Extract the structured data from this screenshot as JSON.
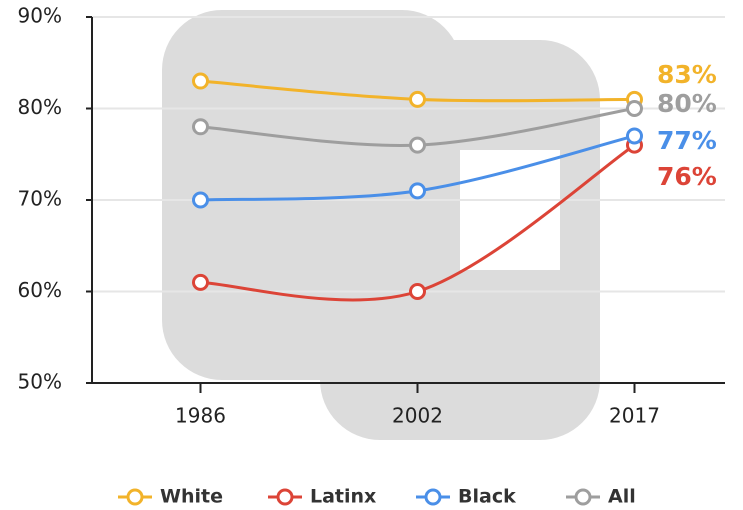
{
  "chart_data": {
    "type": "line",
    "categories": [
      "1986",
      "2002",
      "2017"
    ],
    "series": [
      {
        "name": "White",
        "color": "#f2b32a",
        "values": [
          83,
          81,
          81
        ],
        "label": "83%"
      },
      {
        "name": "Latinx",
        "color": "#dc4437",
        "values": [
          61,
          60,
          76
        ],
        "label": "76%"
      },
      {
        "name": "Black",
        "color": "#4a8fe8",
        "values": [
          70,
          71,
          77
        ],
        "label": "77%"
      },
      {
        "name": "All",
        "color": "#9e9e9e",
        "values": [
          78,
          76,
          80
        ],
        "label": "80%"
      }
    ],
    "ylim": [
      50,
      90
    ],
    "yticks": [
      {
        "value": 50,
        "label": "50%"
      },
      {
        "value": 60,
        "label": "60%"
      },
      {
        "value": 70,
        "label": "70%"
      },
      {
        "value": 80,
        "label": "80%"
      },
      {
        "value": 90,
        "label": "90%"
      }
    ],
    "grid": true
  }
}
